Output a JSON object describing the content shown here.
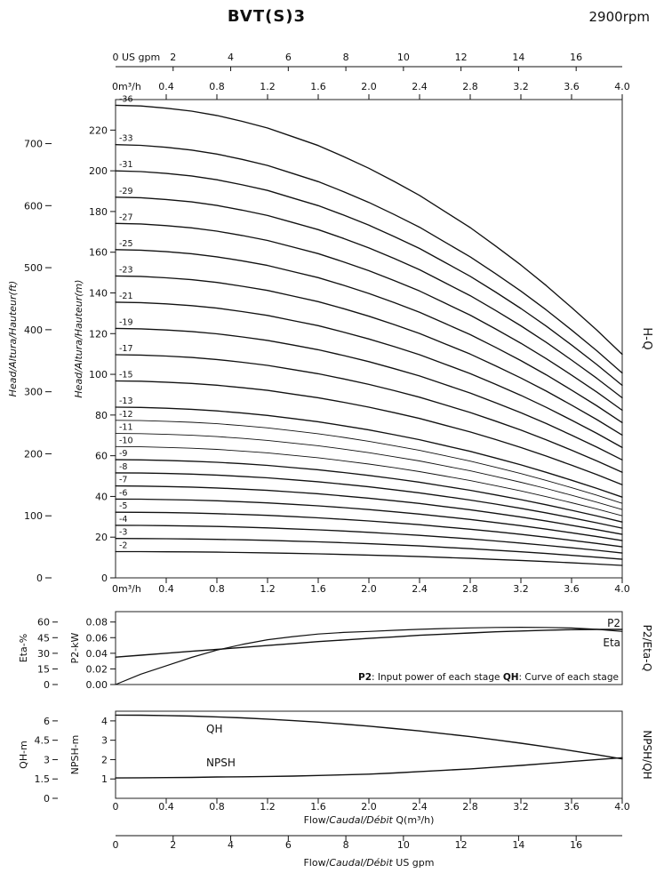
{
  "header": {
    "title": "BVT(S)3",
    "rpm": "2900rpm"
  },
  "labels": {
    "zero": "0",
    "us_gpm": "US gpm",
    "m3h_zero": "0m³/h",
    "head_ft": "Head/Altura/Hauteur(ft)",
    "head_m": "Head/Altura/Hauteur(m)",
    "hq": "H-Q",
    "eta_axis": "Eta-%",
    "p2_axis": "P2-kW",
    "p2_eta_q": "P2/Eta-Q",
    "qh_axis": "QH-m",
    "npsh_axis": "NPSH-m",
    "npsh_qh": "NPSH/QH",
    "p2_series": "P2",
    "eta_series": "Eta",
    "qh_series": "QH",
    "npsh_series": "NPSH",
    "note": [
      {
        "text": "P2",
        "bold": true
      },
      {
        "text": ": Input power of each stage ",
        "bold": false
      },
      {
        "text": "QH",
        "bold": true
      },
      {
        "text": ": Curve of each stage",
        "bold": false
      }
    ],
    "flow_title_m3h": [
      {
        "text": "Flow/",
        "italic": false
      },
      {
        "text": "Caudal/Débit",
        "italic": true
      },
      {
        "text": " Q(m³/h)",
        "italic": false
      }
    ],
    "flow_title_gpm": [
      {
        "text": "Flow/",
        "italic": false
      },
      {
        "text": "Caudal/Débit",
        "italic": true
      },
      {
        "text": "  US gpm",
        "italic": false
      }
    ]
  },
  "chart_data": [
    {
      "type": "line",
      "title": "H-Q",
      "xlabel": "Flow/Caudal/Débit Q(m³/h)",
      "ylabel": "Head/Altura/Hauteur (m and ft)",
      "xlim_m3h": [
        0,
        4.0
      ],
      "xlim_gpm": [
        0,
        17.6
      ],
      "ylim_m": [
        0,
        235
      ],
      "ft_per_m": 3.28084,
      "gpm_ticks": [
        2,
        4,
        6,
        8,
        10,
        12,
        14,
        16
      ],
      "m3h_tick_labels": [
        "0.4",
        "0.8",
        "1.2",
        "1.6",
        "2.0",
        "2.4",
        "2.8",
        "3.2",
        "3.6",
        "4.0"
      ],
      "m_ticks": [
        0,
        20,
        40,
        60,
        80,
        100,
        120,
        140,
        160,
        180,
        200,
        220
      ],
      "ft_ticks": [
        0,
        100,
        200,
        300,
        400,
        500,
        600,
        700
      ],
      "x_m3h": [
        0,
        0.2,
        0.4,
        0.6,
        0.8,
        1.0,
        1.2,
        1.4,
        1.6,
        1.8,
        2.0,
        2.2,
        2.4,
        2.6,
        2.8,
        3.0,
        3.2,
        3.4,
        3.6,
        3.8,
        4.0
      ],
      "per_stage_head_m": [
        6.45,
        6.44,
        6.41,
        6.37,
        6.31,
        6.23,
        6.14,
        6.02,
        5.9,
        5.75,
        5.59,
        5.41,
        5.22,
        5.0,
        4.78,
        4.53,
        4.27,
        3.99,
        3.69,
        3.38,
        3.05
      ],
      "stage_labels": [
        "-36",
        "-33",
        "-31",
        "-29",
        "-27",
        "-25",
        "-23",
        "-21",
        "-19",
        "-17",
        "-15",
        "-13",
        "-12",
        "-11",
        "-10",
        "-9",
        "-8",
        "-7",
        "-6",
        "-5",
        "-4",
        "-3",
        "-2"
      ]
    },
    {
      "type": "line",
      "title": "P2/Eta-Q",
      "eta_ticks": [
        0,
        15,
        30,
        45,
        60
      ],
      "eta_lim": [
        0,
        70
      ],
      "p2_tick_labels": [
        "0.00",
        "0.02",
        "0.04",
        "0.06",
        "0.08"
      ],
      "p2_lim": [
        0,
        0.0933
      ],
      "x_m3h": [
        0,
        0.2,
        0.4,
        0.6,
        0.8,
        1.0,
        1.2,
        1.4,
        1.6,
        1.8,
        2.0,
        2.2,
        2.4,
        2.6,
        2.8,
        3.0,
        3.2,
        3.4,
        3.6,
        3.8,
        4.0
      ],
      "series": [
        {
          "name": "P2",
          "unit": "kW",
          "values": [
            0.035,
            0.0375,
            0.04,
            0.0425,
            0.045,
            0.0475,
            0.05,
            0.0525,
            0.055,
            0.057,
            0.059,
            0.061,
            0.063,
            0.0645,
            0.066,
            0.0675,
            0.0685,
            0.0695,
            0.0702,
            0.0706,
            0.0705
          ]
        },
        {
          "name": "Eta",
          "unit": "%",
          "values": [
            0,
            10,
            18,
            26,
            33,
            38.5,
            43,
            46,
            48.5,
            50,
            51,
            52.1,
            53,
            53.8,
            54.4,
            54.8,
            55,
            54.8,
            54.3,
            53,
            51
          ]
        }
      ]
    },
    {
      "type": "line",
      "title": "NPSH/QH",
      "qh_tick_labels": [
        "0",
        "1.5",
        "3",
        "4.5",
        "6"
      ],
      "qh_lim": [
        0,
        6.75
      ],
      "npsh_ticks": [
        1,
        2,
        3,
        4
      ],
      "npsh_lim": [
        0,
        4.5
      ],
      "x_m3h": [
        0,
        0.2,
        0.4,
        0.6,
        0.8,
        1.0,
        1.2,
        1.4,
        1.6,
        1.8,
        2.0,
        2.2,
        2.4,
        2.6,
        2.8,
        3.0,
        3.2,
        3.4,
        3.6,
        3.8,
        4.0
      ],
      "series": [
        {
          "name": "QH",
          "unit": "m",
          "values": [
            6.45,
            6.44,
            6.41,
            6.37,
            6.31,
            6.23,
            6.14,
            6.02,
            5.9,
            5.75,
            5.59,
            5.41,
            5.22,
            5.0,
            4.78,
            4.53,
            4.27,
            3.99,
            3.69,
            3.38,
            3.05
          ]
        },
        {
          "name": "NPSH",
          "unit": "m",
          "values": [
            1.05,
            1.06,
            1.07,
            1.08,
            1.1,
            1.11,
            1.13,
            1.15,
            1.18,
            1.21,
            1.25,
            1.31,
            1.38,
            1.45,
            1.52,
            1.61,
            1.7,
            1.8,
            1.9,
            2.0,
            2.1
          ]
        }
      ]
    }
  ]
}
